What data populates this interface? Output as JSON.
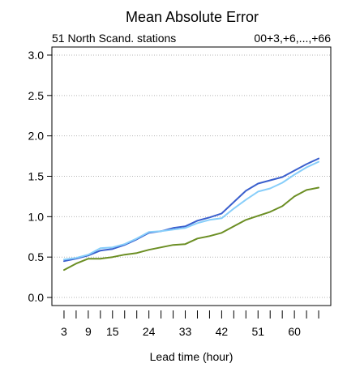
{
  "chart_data": {
    "type": "line",
    "title": "Mean Absolute Error",
    "subtitle_left": "51 North Scand. stations",
    "subtitle_right": "00+3,+6,...,+66",
    "xlabel": "Lead time (hour)",
    "ylabel": "",
    "xlim": [
      0,
      69
    ],
    "ylim": [
      -0.1,
      3.1
    ],
    "x_ticks": [
      3,
      6,
      9,
      12,
      15,
      18,
      21,
      24,
      27,
      30,
      33,
      36,
      39,
      42,
      45,
      48,
      51,
      54,
      57,
      60,
      63,
      66
    ],
    "x_tick_labels": [
      "3",
      "9",
      "15",
      "24",
      "33",
      "42",
      "51",
      "60"
    ],
    "x_tick_label_values": [
      3,
      9,
      15,
      24,
      33,
      42,
      51,
      60
    ],
    "y_ticks": [
      0.0,
      0.5,
      1.0,
      1.5,
      2.0,
      2.5,
      3.0
    ],
    "y_tick_labels": [
      "0.0",
      "0.5",
      "1.0",
      "1.5",
      "2.0",
      "2.5",
      "3.0"
    ],
    "grid": true,
    "x": [
      3,
      6,
      9,
      12,
      15,
      18,
      21,
      24,
      27,
      30,
      33,
      36,
      39,
      42,
      45,
      48,
      51,
      54,
      57,
      60,
      63,
      66
    ],
    "series": [
      {
        "color": "#3a5fcd",
        "values": [
          0.45,
          0.48,
          0.52,
          0.58,
          0.6,
          0.65,
          0.72,
          0.8,
          0.82,
          0.86,
          0.88,
          0.95,
          0.99,
          1.04,
          1.18,
          1.32,
          1.41,
          1.45,
          1.49,
          1.57,
          1.65,
          1.72
        ]
      },
      {
        "color": "#87cefa",
        "values": [
          0.47,
          0.49,
          0.53,
          0.61,
          0.62,
          0.66,
          0.73,
          0.81,
          0.82,
          0.84,
          0.86,
          0.92,
          0.96,
          0.98,
          1.1,
          1.21,
          1.31,
          1.35,
          1.42,
          1.52,
          1.61,
          1.68
        ]
      },
      {
        "color": "#6b8e23",
        "values": [
          0.34,
          0.42,
          0.48,
          0.48,
          0.5,
          0.53,
          0.55,
          0.59,
          0.62,
          0.65,
          0.66,
          0.73,
          0.76,
          0.8,
          0.88,
          0.96,
          1.01,
          1.06,
          1.13,
          1.25,
          1.33,
          1.36
        ]
      }
    ]
  }
}
